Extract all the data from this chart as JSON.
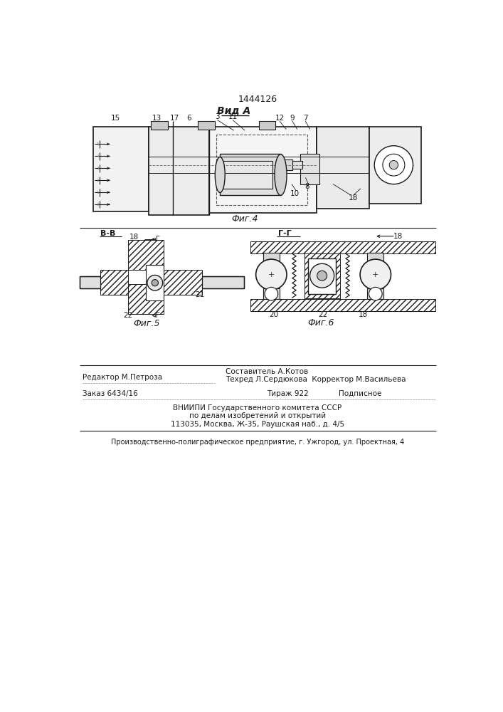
{
  "patent_number": "1444126",
  "title_fig4": "Вид A",
  "caption_fig4": "Фиг.4",
  "caption_fig5": "Фиг.5",
  "caption_fig6": "Фиг.6",
  "section_bb": "B-B",
  "section_gg": "Г-Г",
  "bg_color": "#ffffff",
  "line_color": "#1a1a1a",
  "text_color": "#1a1a1a",
  "footer_line1_left": "Редактор М.Петроза",
  "footer_line1_right": "Составитель А.Котов",
  "footer_line2_right": "Техред Л.Сердюкова  Корректор М.Васильева",
  "footer_order": "Заказ 6434/16",
  "footer_tirazh": "Тираж 922",
  "footer_podpisnoe": "Подписное",
  "footer_vniip": "ВНИИПИ Государственного комитета СССР",
  "footer_po_delam": "по делам изобретений и открытий",
  "footer_address": "113035, Москва, Ж-35, Раушская наб., д. 4/5",
  "footer_production": "Производственно-полиграфическое предприятие, г. Ужгород, ул. Проектная, 4"
}
